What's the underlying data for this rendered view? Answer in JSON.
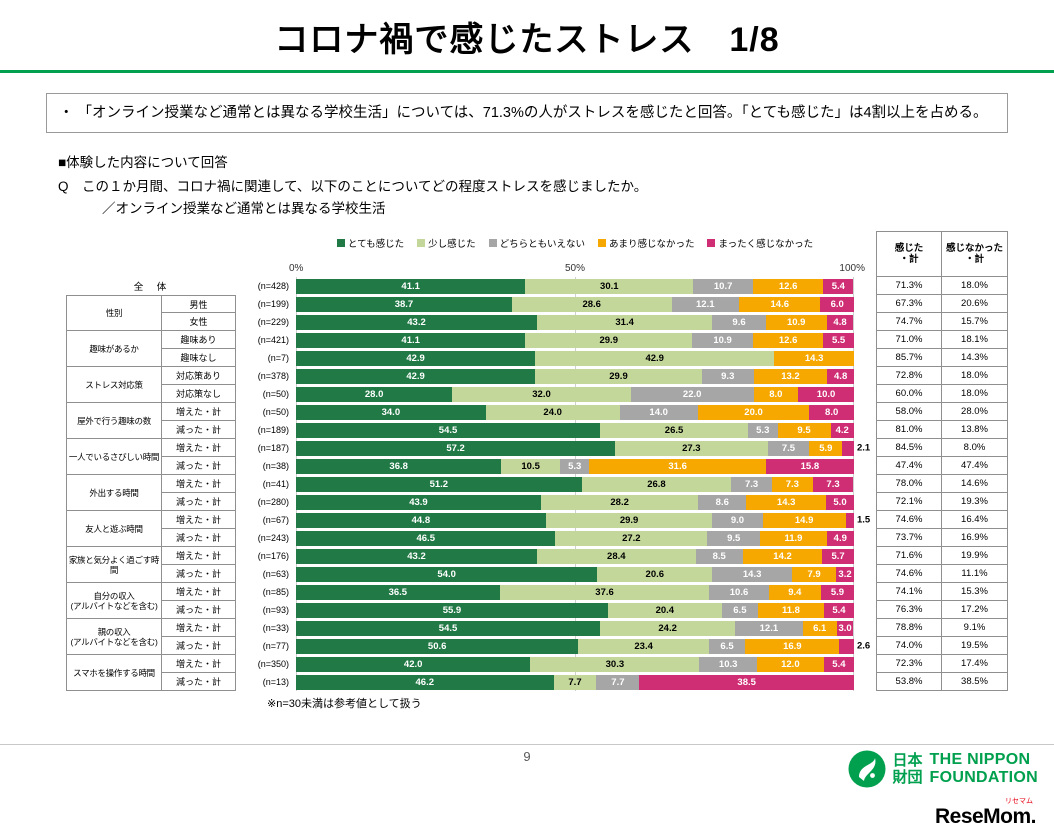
{
  "slide": {
    "title": "コロナ禍で感じたストレス　1/8",
    "bullet_char": "・",
    "summary": "「オンライン授業など通常とは異なる学校生活」については、71.3%の人がストレスを感じたと回答。「とても感じた」は4割以上を占める。",
    "section_heading": "■体験した内容について回答",
    "question": "Q　この１か月間、コロナ禍に関連して、以下のことについてどの程度ストレスを感じましたか。",
    "question_subject": "／オンライン授業など通常とは異なる学校生活",
    "footnote": "※n=30未満は参考値として扱う",
    "page_number": "9"
  },
  "footer": {
    "nf_jp": "日本\n財団",
    "nf_en": "THE NIPPON\nFOUNDATION",
    "resemom_ruby": "リセマム",
    "resemom_wordmark": "ReseMom."
  },
  "chart_data": {
    "type": "bar",
    "stacked": true,
    "orientation": "horizontal",
    "title": "オンライン授業など通常とは異なる学校生活で感じたストレス",
    "xlim": [
      0,
      100
    ],
    "axis_ticks": [
      "0%",
      "50%",
      "100%"
    ],
    "legend_position": "top",
    "series_labels": [
      "とても感じた",
      "少し感じた",
      "どちらともいえない",
      "あまり感じなかった",
      "まったく感じなかった"
    ],
    "colors": [
      "#217a46",
      "#c4d79b",
      "#a6a6a6",
      "#f6a800",
      "#cf2e74"
    ],
    "summary_headers": [
      "感じた\n・計",
      "感じなかった\n・計"
    ],
    "rows": [
      {
        "full": true,
        "label": "全　体",
        "n": "(n=428)",
        "values": [
          41.1,
          30.1,
          10.7,
          12.6,
          5.4
        ],
        "felt": "71.3%",
        "not_felt": "18.0%"
      },
      {
        "group": "性別",
        "span": 2,
        "label": "男性",
        "n": "(n=199)",
        "values": [
          38.7,
          28.6,
          12.1,
          14.6,
          6.0
        ],
        "felt": "67.3%",
        "not_felt": "20.6%"
      },
      {
        "label": "女性",
        "n": "(n=229)",
        "values": [
          43.2,
          31.4,
          9.6,
          10.9,
          4.8
        ],
        "felt": "74.7%",
        "not_felt": "15.7%"
      },
      {
        "group": "趣味があるか",
        "span": 2,
        "label": "趣味あり",
        "n": "(n=421)",
        "values": [
          41.1,
          29.9,
          10.9,
          12.6,
          5.5
        ],
        "felt": "71.0%",
        "not_felt": "18.1%"
      },
      {
        "label": "趣味なし",
        "n": "(n=7)",
        "values": [
          42.9,
          42.9,
          0,
          14.3,
          0
        ],
        "felt": "85.7%",
        "not_felt": "14.3%"
      },
      {
        "group": "ストレス対応策",
        "span": 2,
        "label": "対応策あり",
        "n": "(n=378)",
        "values": [
          42.9,
          29.9,
          9.3,
          13.2,
          4.8
        ],
        "felt": "72.8%",
        "not_felt": "18.0%"
      },
      {
        "label": "対応策なし",
        "n": "(n=50)",
        "values": [
          28.0,
          32.0,
          22.0,
          8.0,
          10.0
        ],
        "felt": "60.0%",
        "not_felt": "18.0%"
      },
      {
        "group": "屋外で行う趣味の数",
        "span": 2,
        "label": "増えた・計",
        "n": "(n=50)",
        "values": [
          34.0,
          24.0,
          14.0,
          20.0,
          8.0
        ],
        "felt": "58.0%",
        "not_felt": "28.0%"
      },
      {
        "label": "減った・計",
        "n": "(n=189)",
        "values": [
          54.5,
          26.5,
          5.3,
          9.5,
          4.2
        ],
        "felt": "81.0%",
        "not_felt": "13.8%"
      },
      {
        "group": "一人でいるさびしい時間",
        "span": 2,
        "label": "増えた・計",
        "n": "(n=187)",
        "values": [
          57.2,
          27.3,
          7.5,
          5.9,
          2.1
        ],
        "felt": "84.5%",
        "not_felt": "8.0%"
      },
      {
        "label": "減った・計",
        "n": "(n=38)",
        "values": [
          36.8,
          10.5,
          5.3,
          31.6,
          15.8
        ],
        "felt": "47.4%",
        "not_felt": "47.4%"
      },
      {
        "group": "外出する時間",
        "span": 2,
        "label": "増えた・計",
        "n": "(n=41)",
        "values": [
          51.2,
          26.8,
          7.3,
          7.3,
          7.3
        ],
        "felt": "78.0%",
        "not_felt": "14.6%"
      },
      {
        "label": "減った・計",
        "n": "(n=280)",
        "values": [
          43.9,
          28.2,
          8.6,
          14.3,
          5.0
        ],
        "felt": "72.1%",
        "not_felt": "19.3%"
      },
      {
        "group": "友人と遊ぶ時間",
        "span": 2,
        "label": "増えた・計",
        "n": "(n=67)",
        "values": [
          44.8,
          29.9,
          9.0,
          14.9,
          1.5
        ],
        "felt": "74.6%",
        "not_felt": "16.4%"
      },
      {
        "label": "減った・計",
        "n": "(n=243)",
        "values": [
          46.5,
          27.2,
          9.5,
          11.9,
          4.9
        ],
        "felt": "73.7%",
        "not_felt": "16.9%"
      },
      {
        "group": "家族と気分よく過ごす時間",
        "span": 2,
        "label": "増えた・計",
        "n": "(n=176)",
        "values": [
          43.2,
          28.4,
          8.5,
          14.2,
          5.7
        ],
        "felt": "71.6%",
        "not_felt": "19.9%"
      },
      {
        "label": "減った・計",
        "n": "(n=63)",
        "values": [
          54.0,
          20.6,
          14.3,
          7.9,
          3.2
        ],
        "felt": "74.6%",
        "not_felt": "11.1%"
      },
      {
        "group": "自分の収入\n(アルバイトなどを含む)",
        "span": 2,
        "label": "増えた・計",
        "n": "(n=85)",
        "values": [
          36.5,
          37.6,
          10.6,
          9.4,
          5.9
        ],
        "felt": "74.1%",
        "not_felt": "15.3%"
      },
      {
        "label": "減った・計",
        "n": "(n=93)",
        "values": [
          55.9,
          20.4,
          6.5,
          11.8,
          5.4
        ],
        "felt": "76.3%",
        "not_felt": "17.2%"
      },
      {
        "group": "親の収入\n(アルバイトなどを含む)",
        "span": 2,
        "label": "増えた・計",
        "n": "(n=33)",
        "values": [
          54.5,
          24.2,
          12.1,
          6.1,
          3.0
        ],
        "felt": "78.8%",
        "not_felt": "9.1%"
      },
      {
        "label": "減った・計",
        "n": "(n=77)",
        "values": [
          50.6,
          23.4,
          6.5,
          16.9,
          2.6
        ],
        "felt": "74.0%",
        "not_felt": "19.5%"
      },
      {
        "group": "スマホを操作する時間",
        "span": 2,
        "label": "増えた・計",
        "n": "(n=350)",
        "values": [
          42.0,
          30.3,
          10.3,
          12.0,
          5.4
        ],
        "felt": "72.3%",
        "not_felt": "17.4%"
      },
      {
        "label": "減った・計",
        "n": "(n=13)",
        "values": [
          46.2,
          7.7,
          7.7,
          0,
          38.5
        ],
        "felt": "53.8%",
        "not_felt": "38.5%"
      }
    ]
  }
}
